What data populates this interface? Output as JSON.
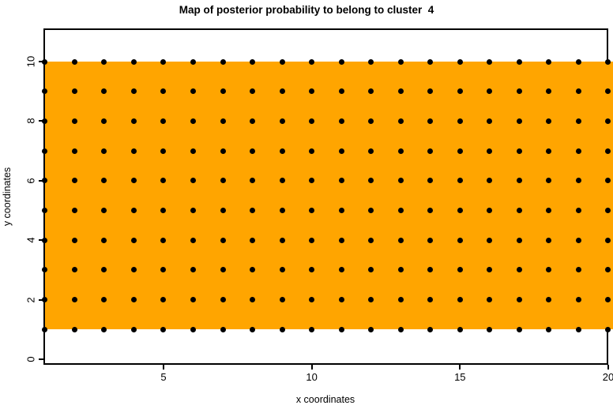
{
  "chart_data": {
    "type": "heatmap",
    "title": "Map of posterior probability to belong to cluster  4",
    "xlabel": "x coordinates",
    "ylabel": "y coordinates",
    "x_values": [
      1,
      2,
      3,
      4,
      5,
      6,
      7,
      8,
      9,
      10,
      11,
      12,
      13,
      14,
      15,
      16,
      17,
      18,
      19,
      20
    ],
    "y_values": [
      1,
      2,
      3,
      4,
      5,
      6,
      7,
      8,
      9,
      10
    ],
    "x_ticks": [
      5,
      10,
      15,
      20
    ],
    "y_ticks": [
      0,
      2,
      4,
      6,
      8,
      10
    ],
    "xlim": [
      1,
      20
    ],
    "ylim": [
      0,
      11
    ],
    "fill": {
      "color": "#FFA500",
      "x_extent": [
        1,
        20
      ],
      "y_extent": [
        1,
        10
      ],
      "value": "uniform single-color region"
    },
    "points": {
      "marker": "filled-circle",
      "color": "#000000",
      "placement": "every integer (x,y) grid intersection"
    },
    "legend": "none",
    "grid_lines": false,
    "background": "#FFFFFF",
    "axis_color": "#000000"
  }
}
